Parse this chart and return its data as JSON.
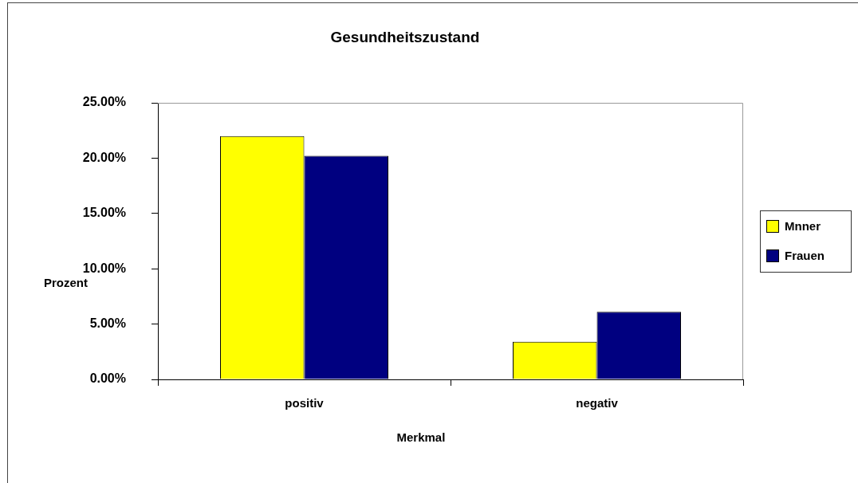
{
  "chart_data": {
    "type": "bar",
    "title": "Gesundheitszustand",
    "xlabel": "Merkmal",
    "ylabel": "Prozent",
    "categories": [
      "positiv",
      "negativ"
    ],
    "series": [
      {
        "name": "Mnner",
        "color": "#ffff00",
        "values": [
          22.0,
          3.4
        ]
      },
      {
        "name": "Frauen",
        "color": "#000080",
        "values": [
          20.2,
          6.1
        ]
      }
    ],
    "ylim": [
      0,
      25
    ],
    "yticks": [
      {
        "value": 0,
        "label": "0.00%"
      },
      {
        "value": 5,
        "label": "5.00%"
      },
      {
        "value": 10,
        "label": "10.00%"
      },
      {
        "value": 15,
        "label": "15.00%"
      },
      {
        "value": 20,
        "label": "20.00%"
      },
      {
        "value": 25,
        "label": "25.00%"
      }
    ],
    "legend": "right"
  }
}
